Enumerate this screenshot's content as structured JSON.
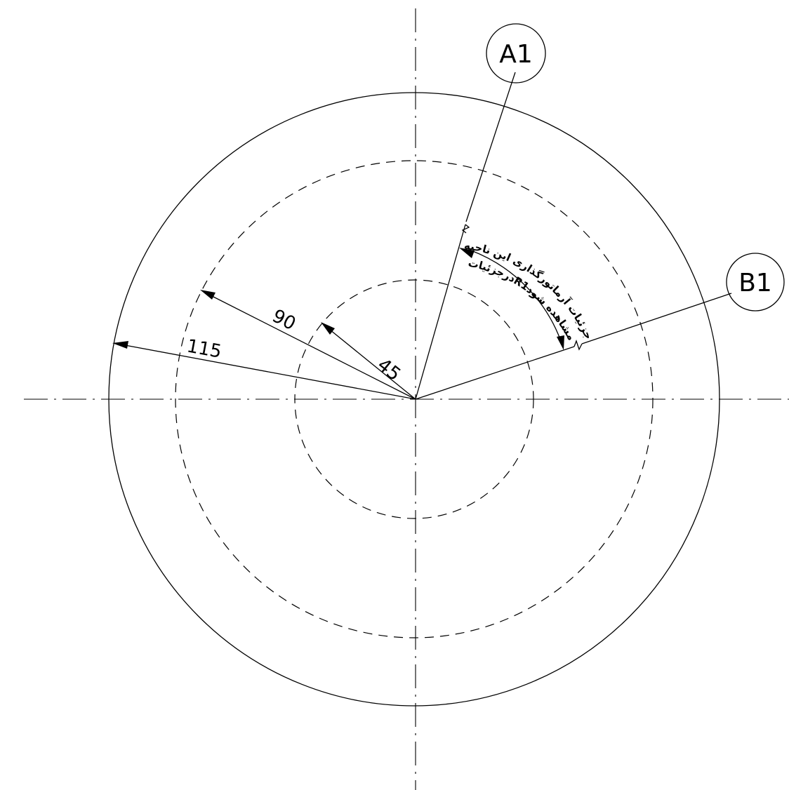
{
  "dimensions": {
    "outer_radius": "115",
    "middle_radius": "90",
    "inner_radius": "45"
  },
  "section_tags": {
    "a": "A1",
    "b": "B1"
  },
  "note": {
    "line1": "جزئیات آرماتورگذاری این ناحیه",
    "line2": "درجزئیاتR1مشاهده شود"
  }
}
